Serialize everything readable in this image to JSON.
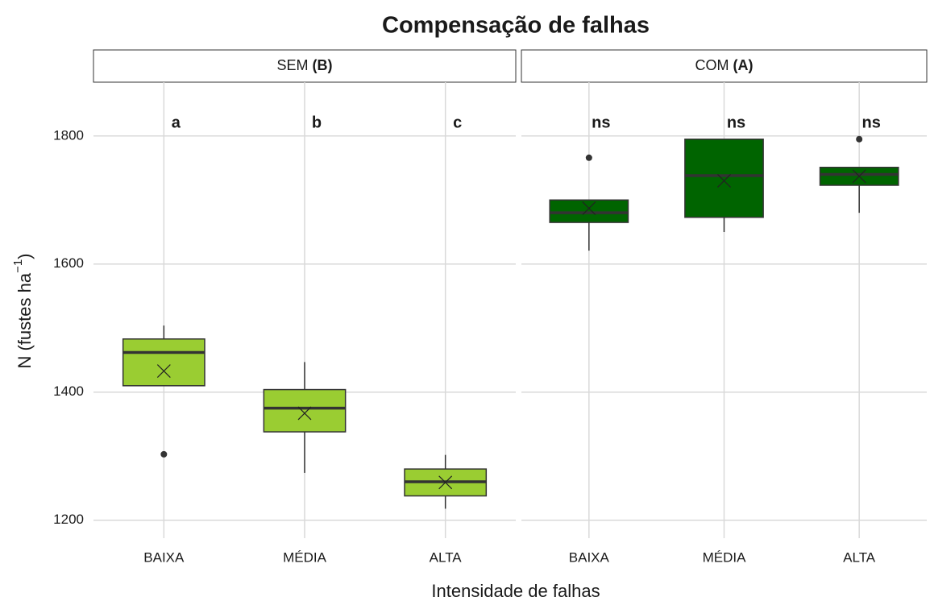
{
  "chart_data": {
    "type": "box",
    "title": "Compensação de falhas",
    "xlabel": "Intensidade de falhas",
    "ylabel": {
      "text": "N (fustes ha",
      "sup": "−1",
      "end": ")"
    },
    "ylim": [
      1172,
      1884
    ],
    "yticks": [
      1200,
      1400,
      1600,
      1800
    ],
    "grid": true,
    "facets": [
      {
        "strip": {
          "text": "SEM",
          "bold": "(B)"
        },
        "color": "#9acd32",
        "categories": [
          "BAIXA",
          "MÉDIA",
          "ALTA"
        ],
        "letters": [
          "a",
          "b",
          "c"
        ],
        "boxes": [
          {
            "whisker_low": 1410,
            "q1": 1410,
            "median": 1462,
            "q3": 1483,
            "whisker_high": 1504,
            "mean": 1433,
            "outliers": [
              1303
            ]
          },
          {
            "whisker_low": 1274,
            "q1": 1338,
            "median": 1375,
            "q3": 1404,
            "whisker_high": 1447,
            "mean": 1367,
            "outliers": []
          },
          {
            "whisker_low": 1218,
            "q1": 1238,
            "median": 1260,
            "q3": 1280,
            "whisker_high": 1302,
            "mean": 1259,
            "outliers": []
          }
        ]
      },
      {
        "strip": {
          "text": "COM",
          "bold": "(A)"
        },
        "color": "#006400",
        "categories": [
          "BAIXA",
          "MÉDIA",
          "ALTA"
        ],
        "letters": [
          "ns",
          "ns",
          "ns"
        ],
        "boxes": [
          {
            "whisker_low": 1621,
            "q1": 1665,
            "median": 1680,
            "q3": 1700,
            "whisker_high": 1700,
            "mean": 1687,
            "outliers": [
              1766
            ]
          },
          {
            "whisker_low": 1650,
            "q1": 1673,
            "median": 1738,
            "q3": 1795,
            "whisker_high": 1795,
            "mean": 1730,
            "outliers": []
          },
          {
            "whisker_low": 1680,
            "q1": 1723,
            "median": 1740,
            "q3": 1751,
            "whisker_high": 1751,
            "mean": 1737,
            "outliers": [
              1795
            ]
          }
        ]
      }
    ]
  }
}
